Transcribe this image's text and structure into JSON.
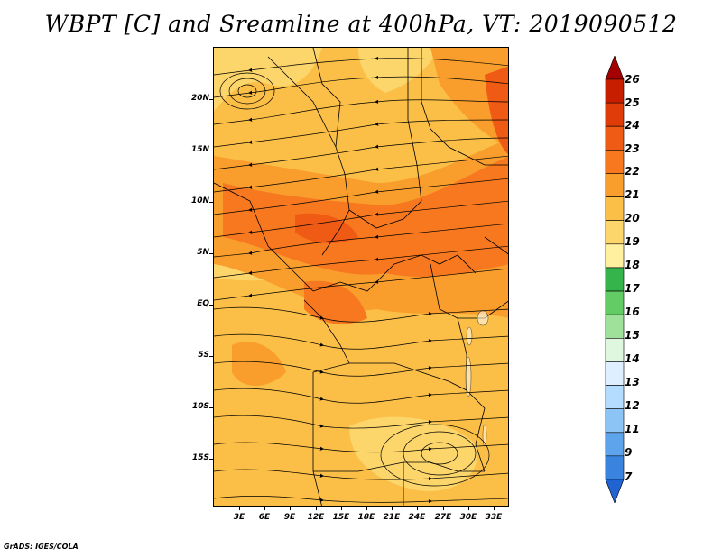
{
  "title": "WBPT [C] and Sreamline at 400hPa, VT: 2019090512",
  "map": {
    "region": "Central & East Africa",
    "lat_labels": [
      "20N",
      "15N",
      "10N",
      "5N",
      "EQ",
      "5S",
      "10S",
      "15S"
    ],
    "lon_labels": [
      "3E",
      "6E",
      "9E",
      "12E",
      "15E",
      "18E",
      "21E",
      "24E",
      "27E",
      "30E",
      "33E"
    ]
  },
  "colorbar": {
    "labels": [
      "26",
      "25",
      "24",
      "23",
      "22",
      "21",
      "20",
      "19",
      "18",
      "17",
      "16",
      "15",
      "14",
      "13",
      "12",
      "11",
      "9",
      "7"
    ],
    "colors": [
      "#a50000",
      "#c81e00",
      "#e03c0a",
      "#ef5a14",
      "#f7781e",
      "#f99e2d",
      "#fbbe46",
      "#fcd66a",
      "#fff0a0",
      "#34b44b",
      "#64cc64",
      "#9fe09a",
      "#dff7df",
      "#def0ff",
      "#b3dcff",
      "#8cc4f5",
      "#5ea4ec",
      "#3a84e0",
      "#1f64d2"
    ]
  },
  "footer": "GrADS: IGES/COLA"
}
